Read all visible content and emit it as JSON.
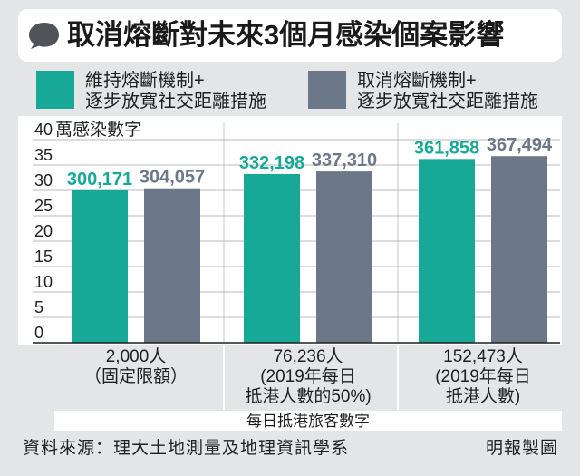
{
  "header": {
    "icon": "speech-bubble-icon"
  },
  "chart_data": {
    "type": "bar",
    "title": "取消熔斷對未來3個月感染個案影響",
    "ylabel": "萬感染數字",
    "xlabel": "每日抵港旅客數字",
    "ylim": [
      0,
      40
    ],
    "yticks": [
      0,
      5,
      10,
      15,
      20,
      25,
      30,
      35,
      40
    ],
    "grid": true,
    "legend_position": "top",
    "categories": [
      [
        "2,000人",
        "（固定限額）"
      ],
      [
        "76,236人",
        "(2019年每日",
        "抵港人數的50%)"
      ],
      [
        "152,473人",
        "(2019年每日",
        "抵港人數)"
      ]
    ],
    "series": [
      {
        "name": [
          "維持熔斷機制+",
          "逐步放寬社交距離措施"
        ],
        "color": "#17a898",
        "values": [
          30.0171,
          33.2198,
          36.1858
        ],
        "labels": [
          "300,171",
          "332,198",
          "361,858"
        ]
      },
      {
        "name": [
          "取消熔斷機制+",
          "逐步放寬社交距離措施"
        ],
        "color": "#6c7788",
        "values": [
          30.4057,
          33.731,
          36.7494
        ],
        "labels": [
          "304,057",
          "337,310",
          "367,494"
        ]
      }
    ]
  },
  "footer": {
    "source": "資料來源：理大土地測量及地理資訊學系",
    "credit": "明報製圖"
  },
  "colors": {
    "background": "#e4e5e6",
    "panel": "#ffffff",
    "icon": "#505459"
  }
}
